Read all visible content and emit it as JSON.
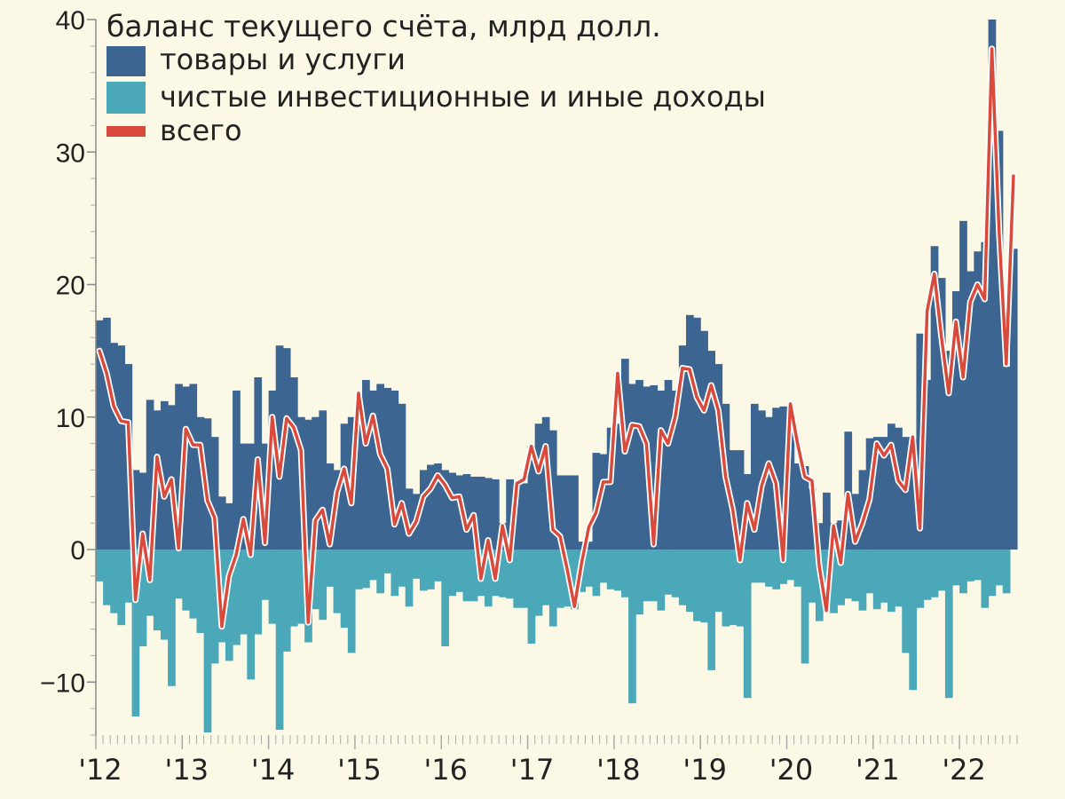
{
  "chart_data": {
    "type": "bar",
    "title": "баланс текущего счёта, млрд долл.",
    "ylim": [
      -14,
      40
    ],
    "y_ticks": [
      40,
      30,
      20,
      10,
      0,
      -10
    ],
    "y_tick_labels": [
      "40",
      "30",
      "20",
      "10",
      "0",
      "−10"
    ],
    "x_labels": [
      "'12",
      "'13",
      "'14",
      "'15",
      "'16",
      "'17",
      "'18",
      "'19",
      "'20",
      "'21",
      "'22"
    ],
    "months_start": "2012-01",
    "legend_position": "top-left",
    "series": [
      {
        "name": "товары и услуги",
        "color": "#3c6691",
        "type": "bar",
        "values": [
          17.3,
          17.5,
          15.6,
          15.4,
          14.0,
          6.0,
          5.8,
          11.3,
          10.5,
          11.2,
          10.9,
          12.5,
          12.3,
          12.5,
          10.0,
          9.9,
          8.5,
          4.0,
          3.5,
          12.0,
          8.0,
          8.0,
          13.0,
          8.0,
          12.0,
          15.4,
          15.2,
          13.0,
          10.0,
          9.8,
          10.0,
          10.5,
          6.5,
          6.0,
          9.5,
          10.0,
          11.0,
          12.8,
          12.0,
          12.5,
          12.2,
          12.0,
          11.0,
          4.6,
          4.2,
          6.0,
          6.4,
          6.5,
          6.0,
          5.8,
          5.6,
          5.7,
          5.5,
          5.5,
          5.4,
          5.3,
          2.0,
          5.3,
          5.0,
          5.0,
          7.8,
          9.5,
          10.0,
          9.0,
          5.6,
          5.6,
          5.6,
          0.6,
          0.6,
          7.3,
          7.2,
          9.2,
          9.5,
          14.4,
          12.5,
          12.8,
          12.3,
          12.4,
          12.0,
          12.8,
          12.0,
          15.4,
          17.7,
          17.5,
          16.5,
          15.0,
          14.0,
          11.0,
          7.5,
          7.5,
          5.7,
          11.0,
          10.5,
          10.0,
          10.7,
          10.8,
          9.5,
          6.5,
          6.3,
          4.6,
          2.0,
          4.3,
          2.0,
          2.2,
          8.9,
          4.2,
          6.0,
          8.4,
          8.5,
          8.5,
          9.5,
          9.2,
          8.5,
          8.3,
          16.3,
          12.8,
          22.9,
          20.5,
          15.0,
          19.5,
          24.8,
          21.0,
          22.5,
          23.2,
          40.0,
          31.6,
          13.8,
          22.7
        ]
      },
      {
        "name": "чистые инвестиционные и иные доходы",
        "color": "#4ba8b8",
        "type": "bar",
        "values": [
          -2.4,
          -4.2,
          -4.8,
          -5.7,
          -4.0,
          -12.6,
          -7.3,
          -5.0,
          -6.1,
          -6.8,
          -10.3,
          -3.7,
          -4.6,
          -5.2,
          -6.3,
          -13.8,
          -8.6,
          -7.0,
          -8.4,
          -7.2,
          -6.4,
          -9.8,
          -6.4,
          -3.8,
          -5.6,
          -13.6,
          -7.7,
          -5.8,
          -5.6,
          -7.0,
          -4.5,
          -5.3,
          -2.8,
          -4.8,
          -5.9,
          -7.8,
          -3.0,
          -2.9,
          -2.3,
          -3.3,
          -1.8,
          -3.5,
          -2.8,
          -4.3,
          -2.2,
          -3.1,
          -3.0,
          -2.4,
          -7.3,
          -3.5,
          -3.2,
          -3.9,
          -3.9,
          -3.5,
          -4.3,
          -3.5,
          -3.6,
          -3.7,
          -4.4,
          -4.4,
          -7.1,
          -5.0,
          -4.2,
          -5.8,
          -4.4,
          -4.3,
          -4.5,
          -3.2,
          -2.8,
          -3.5,
          -2.5,
          -3.0,
          -3.1,
          -3.6,
          -11.6,
          -4.9,
          -3.9,
          -3.9,
          -4.6,
          -3.4,
          -3.6,
          -4.2,
          -4.7,
          -5.4,
          -5.5,
          -9.1,
          -4.7,
          -5.8,
          -5.7,
          -5.8,
          -11.2,
          -2.5,
          -2.5,
          -2.8,
          -3.0,
          -2.6,
          -2.3,
          -2.8,
          -8.6,
          -4.0,
          -5.4,
          -3.0,
          -4.8,
          -4.2,
          -3.7,
          -3.9,
          -4.6,
          -3.3,
          -4.5,
          -4.0,
          -4.7,
          -4.3,
          -7.8,
          -10.6,
          -4.4,
          -3.8,
          -3.6,
          -3.1,
          -11.2,
          -2.7,
          -3.3,
          -2.4,
          -2.3,
          -4.4,
          -3.5,
          -2.7,
          -3.3
        ]
      },
      {
        "name": "всего",
        "color": "#d84a3c",
        "type": "line",
        "values": [
          15.0,
          13.3,
          10.8,
          9.7,
          9.6,
          -3.8,
          1.2,
          -2.3,
          7.0,
          4.0,
          5.3,
          0.1,
          9.1,
          7.9,
          7.9,
          3.7,
          2.4,
          -5.8,
          -2.0,
          -0.4,
          2.3,
          -0.4,
          6.8,
          0.5,
          10.0,
          5.5,
          9.9,
          9.2,
          7.5,
          -5.5,
          2.2,
          3.0,
          0.4,
          4.3,
          6.1,
          3.5,
          11.8,
          8.0,
          10.1,
          7.2,
          6.1,
          1.9,
          3.5,
          1.2,
          2.1,
          4.0,
          4.6,
          5.6,
          4.9,
          3.9,
          4.0,
          1.5,
          2.6,
          -2.2,
          0.7,
          -2.2,
          1.8,
          -0.8,
          5.0,
          5.3,
          7.8,
          5.9,
          7.8,
          1.5,
          1.0,
          -1.5,
          -4.3,
          -1.0,
          1.7,
          2.8,
          5.1,
          5.1,
          13.3,
          7.4,
          9.4,
          9.3,
          8.0,
          0.4,
          9.0,
          8.0,
          10.0,
          13.7,
          13.6,
          11.5,
          10.5,
          12.4,
          10.5,
          5.5,
          3.0,
          -0.8,
          3.5,
          1.5,
          4.8,
          6.5,
          5.0,
          -0.8,
          11.0,
          8.0,
          5.5,
          5.2,
          -1.2,
          -4.6,
          1.8,
          -1.0,
          4.2,
          0.6,
          2.0,
          3.8,
          8.0,
          7.1,
          7.9,
          5.2,
          4.5,
          8.5,
          1.6,
          18.0,
          20.8,
          16.0,
          11.8,
          17.2,
          13.0,
          18.7,
          20.0,
          18.9,
          37.8,
          24.0,
          14.0,
          28.2
        ]
      }
    ]
  }
}
